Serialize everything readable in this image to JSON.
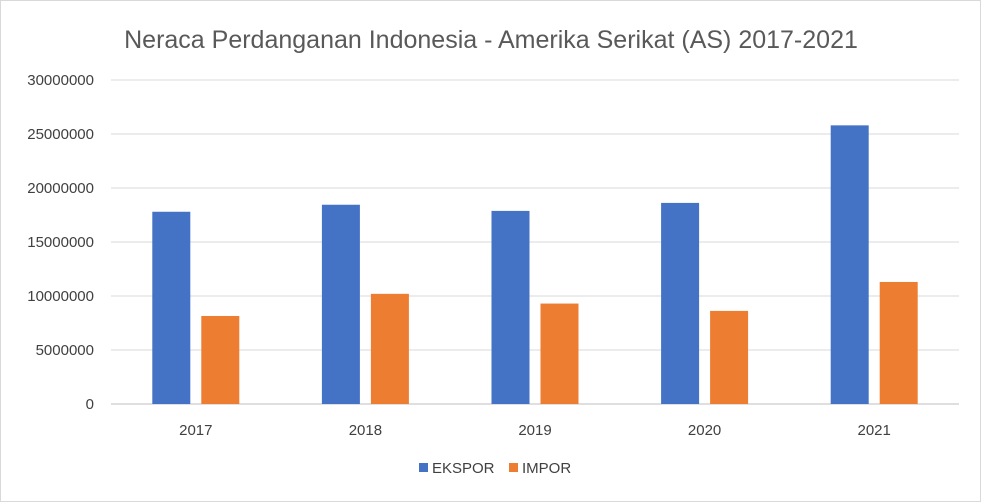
{
  "chart_data": {
    "type": "bar",
    "title": "Neraca Perdanganan Indonesia - Amerika Serikat (AS) 2017-2021",
    "categories": [
      "2017",
      "2018",
      "2019",
      "2020",
      "2021"
    ],
    "series": [
      {
        "name": "EKSPOR",
        "color": "#4472C4",
        "values": [
          17800000,
          18450000,
          17880000,
          18620000,
          25800000
        ]
      },
      {
        "name": "IMPOR",
        "color": "#ED7D31",
        "values": [
          8150000,
          10200000,
          9300000,
          8620000,
          11300000
        ]
      }
    ],
    "ylim": [
      0,
      30000000
    ],
    "yticks": [
      "0",
      "5000000",
      "10000000",
      "15000000",
      "20000000",
      "25000000",
      "30000000"
    ],
    "xlabel": "",
    "ylabel": "",
    "grid": true,
    "legend_position": "bottom"
  }
}
